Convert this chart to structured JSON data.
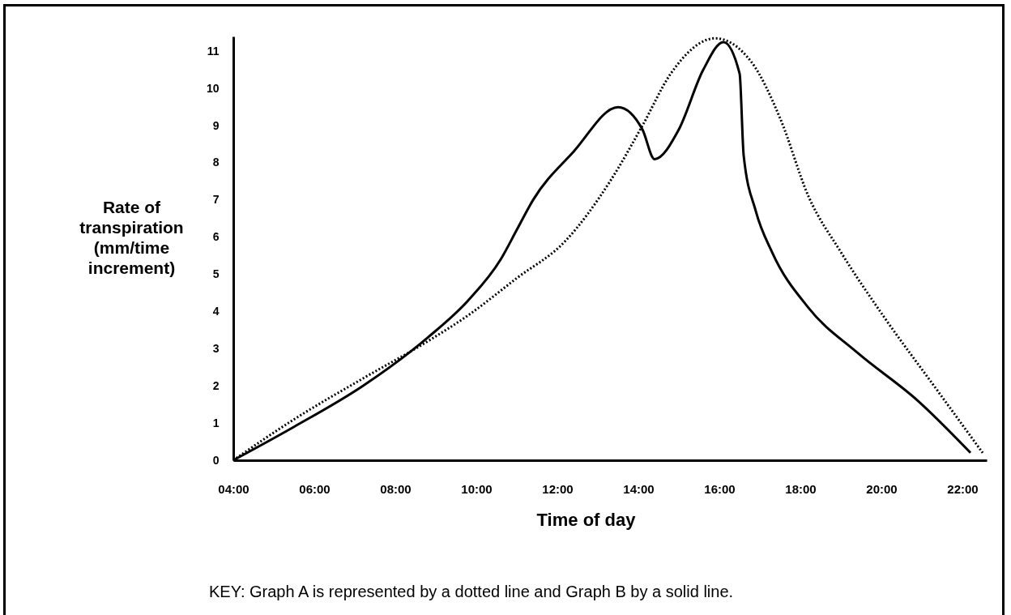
{
  "chart_data": {
    "type": "line",
    "xlabel": "Time of day",
    "ylabel": "Rate of transpiration (mm/time increment)",
    "annotations": [
      "KEY:   Graph A is represented by a dotted line and Graph B by a solid line."
    ],
    "xlim": [
      4,
      22.6
    ],
    "ylim": [
      0,
      11.4
    ],
    "xticks": [
      {
        "value": 4,
        "label": "04:00"
      },
      {
        "value": 6,
        "label": "06:00"
      },
      {
        "value": 8,
        "label": "08:00"
      },
      {
        "value": 10,
        "label": "10:00"
      },
      {
        "value": 12,
        "label": "12:00"
      },
      {
        "value": 14,
        "label": "14:00"
      },
      {
        "value": 16,
        "label": "16:00"
      },
      {
        "value": 18,
        "label": "18:00"
      },
      {
        "value": 20,
        "label": "20:00"
      },
      {
        "value": 22,
        "label": "22:00"
      }
    ],
    "yticks": [
      0,
      1,
      2,
      3,
      4,
      5,
      6,
      7,
      8,
      9,
      10,
      11
    ],
    "grid": false,
    "marker": "none",
    "series": [
      {
        "color": "#000000",
        "line_style": "dotted",
        "x": [
          4,
          5.5,
          7.2,
          8.8,
          9.8,
          11.0,
          12.2,
          13.3,
          14.1,
          14.8,
          15.9,
          16.8,
          17.5,
          18.2,
          19.0,
          20.1,
          21.3,
          22.5
        ],
        "values": [
          0,
          1.1,
          2.2,
          3.2,
          3.9,
          4.9,
          5.9,
          7.5,
          9.0,
          10.4,
          11.35,
          10.7,
          9.2,
          7.1,
          5.6,
          3.8,
          2.0,
          0.2
        ]
      },
      {
        "color": "#000000",
        "line_style": "solid",
        "x": [
          4,
          5.5,
          7.2,
          8.8,
          9.8,
          10.6,
          11.0,
          11.4,
          12.4,
          13.5,
          14.1,
          14.4,
          15.0,
          15.6,
          16.1,
          16.5,
          16.6,
          16.9,
          17.3,
          18.2,
          19.4,
          20.9,
          22.2
        ],
        "values": [
          0,
          0.9,
          2.0,
          3.3,
          4.3,
          5.4,
          6.2,
          7.0,
          8.3,
          9.5,
          8.9,
          8.1,
          8.9,
          10.5,
          11.25,
          10.4,
          8.2,
          6.7,
          5.6,
          4.1,
          2.9,
          1.6,
          0.2
        ]
      }
    ]
  }
}
